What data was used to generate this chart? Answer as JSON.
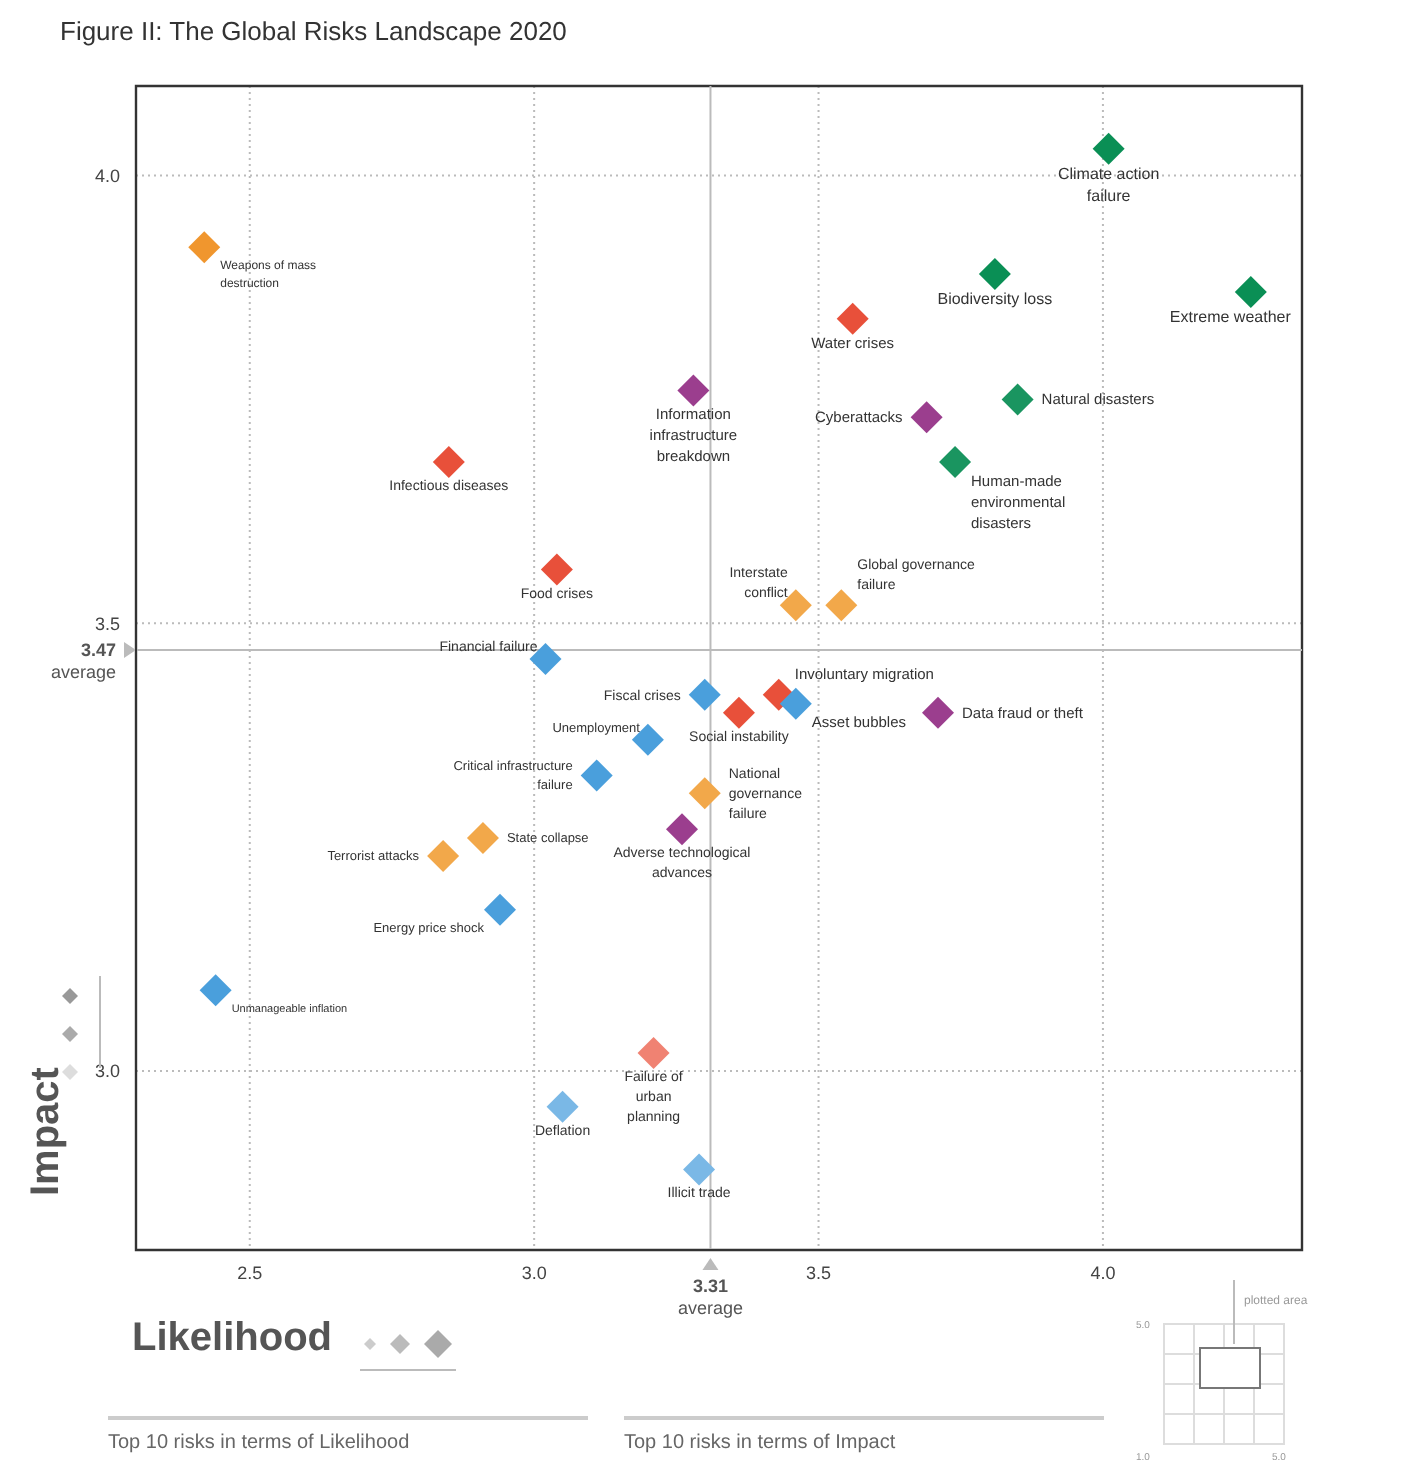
{
  "chart_data": {
    "type": "scatter",
    "title": "Figure II: The Global Risks Landscape 2020",
    "xlabel": "Likelihood",
    "ylabel": "Impact",
    "xlim": [
      2.3,
      4.35
    ],
    "ylim": [
      2.8,
      4.1
    ],
    "xticks": [
      2.5,
      {
        "value": 3,
        "label": "3.0"
      },
      3.5,
      {
        "value": 4,
        "label": "4.0"
      }
    ],
    "yticks": [
      {
        "value": 3,
        "label": "3.0"
      },
      3.5,
      {
        "value": 4,
        "label": "4.0"
      }
    ],
    "grid": true,
    "marker": "diamond",
    "ref_lines": [
      {
        "axis": "x",
        "value": 3.31,
        "label": "3.31 average",
        "color": "#bbbbbb"
      },
      {
        "axis": "y",
        "value": 3.47,
        "label": "3.47 average",
        "color": "#bbbbbb"
      }
    ],
    "annotations": [
      "Top 10 risks in terms of Likelihood",
      "Top 10 risks in terms of Impact",
      "plotted area",
      "1.0",
      "5.0",
      "5.0"
    ],
    "series": [
      {
        "name": "Weapons of mass destruction",
        "color": "#f0962e",
        "x": [
          2.42
        ],
        "values": [
          3.92
        ]
      },
      {
        "name": "Infectious diseases",
        "color": "#e8503a",
        "x": [
          2.85
        ],
        "values": [
          3.68
        ]
      },
      {
        "name": "Food crises",
        "color": "#e8503a",
        "x": [
          3.04
        ],
        "values": [
          3.56
        ]
      },
      {
        "name": "Financial failure",
        "color": "#4a9fdc",
        "x": [
          3.02
        ],
        "values": [
          3.46
        ]
      },
      {
        "name": "Information infrastructure breakdown",
        "color": "#9b3e8e",
        "x": [
          3.28
        ],
        "values": [
          3.76
        ]
      },
      {
        "name": "Water crises",
        "color": "#e8503a",
        "x": [
          3.56
        ],
        "values": [
          3.84
        ]
      },
      {
        "name": "Biodiversity loss",
        "color": "#0a8f55",
        "x": [
          3.81
        ],
        "values": [
          3.89
        ]
      },
      {
        "name": "Climate action failure",
        "color": "#0a8f55",
        "x": [
          4.01
        ],
        "values": [
          4.03
        ]
      },
      {
        "name": "Extreme weather",
        "color": "#0a8f55",
        "x": [
          4.26
        ],
        "values": [
          3.87
        ]
      },
      {
        "name": "Cyberattacks",
        "color": "#9b3e8e",
        "x": [
          3.69
        ],
        "values": [
          3.73
        ]
      },
      {
        "name": "Natural disasters",
        "color": "#1a9560",
        "x": [
          3.85
        ],
        "values": [
          3.75
        ]
      },
      {
        "name": "Human-made environmental disasters",
        "color": "#1a9560",
        "x": [
          3.74
        ],
        "values": [
          3.68
        ]
      },
      {
        "name": "Interstate conflict",
        "color": "#f2a84a",
        "x": [
          3.46
        ],
        "values": [
          3.52
        ]
      },
      {
        "name": "Global governance failure",
        "color": "#f2a84a",
        "x": [
          3.54
        ],
        "values": [
          3.52
        ]
      },
      {
        "name": "Fiscal crises",
        "color": "#4a9fdc",
        "x": [
          3.3
        ],
        "values": [
          3.42
        ]
      },
      {
        "name": "Involuntary migration",
        "color": "#e8503a",
        "x": [
          3.43
        ],
        "values": [
          3.42
        ]
      },
      {
        "name": "Social instability",
        "color": "#e8503a",
        "x": [
          3.36
        ],
        "values": [
          3.4
        ]
      },
      {
        "name": "Asset bubbles",
        "color": "#4a9fdc",
        "x": [
          3.46
        ],
        "values": [
          3.41
        ]
      },
      {
        "name": "Data fraud or theft",
        "color": "#9b3e8e",
        "x": [
          3.71
        ],
        "values": [
          3.4
        ]
      },
      {
        "name": "Unemployment",
        "color": "#4a9fdc",
        "x": [
          3.2
        ],
        "values": [
          3.37
        ]
      },
      {
        "name": "Critical infrastructure failure",
        "color": "#4a9fdc",
        "x": [
          3.11
        ],
        "values": [
          3.33
        ]
      },
      {
        "name": "National governance failure",
        "color": "#f2a84a",
        "x": [
          3.3
        ],
        "values": [
          3.31
        ]
      },
      {
        "name": "Adverse technological advances",
        "color": "#9b3e8e",
        "x": [
          3.26
        ],
        "values": [
          3.27
        ]
      },
      {
        "name": "State collapse",
        "color": "#f2a84a",
        "x": [
          2.91
        ],
        "values": [
          3.26
        ]
      },
      {
        "name": "Terrorist attacks",
        "color": "#f2a84a",
        "x": [
          2.84
        ],
        "values": [
          3.24
        ]
      },
      {
        "name": "Energy price shock",
        "color": "#4a9fdc",
        "x": [
          2.94
        ],
        "values": [
          3.18
        ]
      },
      {
        "name": "Unmanageable inflation",
        "color": "#4a9fdc",
        "x": [
          2.44
        ],
        "values": [
          3.09
        ]
      },
      {
        "name": "Failure of urban planning",
        "color": "#f08272",
        "x": [
          3.21
        ],
        "values": [
          3.02
        ]
      },
      {
        "name": "Deflation",
        "color": "#7ab8e6",
        "x": [
          3.05
        ],
        "values": [
          2.96
        ]
      },
      {
        "name": "Illicit trade",
        "color": "#7ab8e6",
        "x": [
          3.29
        ],
        "values": [
          2.89
        ]
      }
    ]
  }
}
